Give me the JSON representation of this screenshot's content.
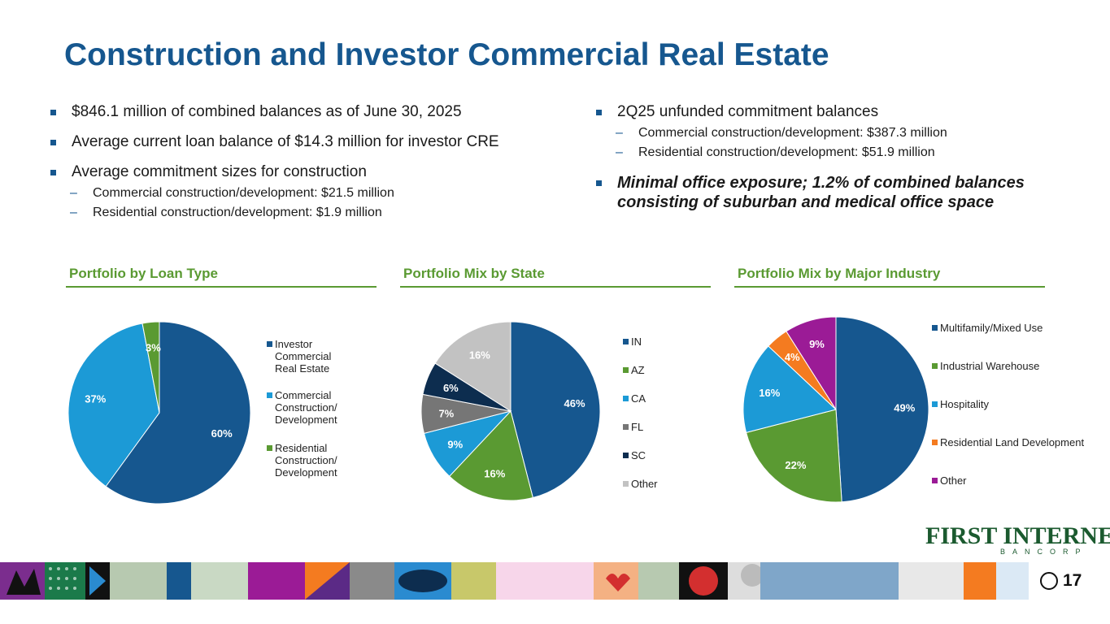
{
  "title": "Construction and Investor Commercial Real Estate",
  "left_bullets": [
    {
      "text": "$846.1 million of combined balances as of June 30, 2025",
      "subs": []
    },
    {
      "text": "Average current loan balance of $14.3 million for investor CRE",
      "subs": []
    },
    {
      "text": "Average commitment sizes for construction",
      "subs": [
        "Commercial construction/development: $21.5 million",
        "Residential construction/development: $1.9 million"
      ]
    }
  ],
  "right_bullets": [
    {
      "text": "2Q25 unfunded commitment balances",
      "subs": [
        "Commercial construction/development: $387.3 million",
        "Residential construction/development: $51.9 million"
      ]
    },
    {
      "text": "Minimal office exposure; 1.2% of combined balances consisting of suburban and medical office space",
      "subs": []
    }
  ],
  "sections": {
    "loan_type": "Portfolio by Loan Type",
    "state": "Portfolio Mix by State",
    "industry": "Portfolio Mix by Major Industry"
  },
  "logo": {
    "name": "FIRST INTERNET",
    "sub": "BANCORP"
  },
  "page_number": "17",
  "chart_data": [
    {
      "type": "pie",
      "title": "Portfolio by Loan Type",
      "legend_position": "right",
      "slices": [
        {
          "label": "Investor Commercial Real Estate",
          "legend": "Investor\nCommercial\nReal Estate",
          "value": 60,
          "display": "60%",
          "color": "#16578f",
          "label_color": "#ffffff"
        },
        {
          "label": "Commercial Construction/ Development",
          "legend": "Commercial\nConstruction/\nDevelopment",
          "value": 37,
          "display": "37%",
          "color": "#1c9ad6",
          "label_color": "#ffffff"
        },
        {
          "label": "Residential Construction/ Development",
          "legend": "Residential\nConstruction/\nDevelopment",
          "value": 3,
          "display": "3%",
          "color": "#5a9a32",
          "label_color": "#ffffff"
        }
      ]
    },
    {
      "type": "pie",
      "title": "Portfolio Mix by State",
      "legend_position": "right",
      "slices": [
        {
          "label": "IN",
          "legend": "IN",
          "value": 46,
          "display": "46%",
          "color": "#16578f",
          "label_color": "#ffffff"
        },
        {
          "label": "AZ",
          "legend": "AZ",
          "value": 16,
          "display": "16%",
          "color": "#5a9a32",
          "label_color": "#ffffff"
        },
        {
          "label": "CA",
          "legend": "CA",
          "value": 9,
          "display": "9%",
          "color": "#1c9ad6",
          "label_color": "#ffffff"
        },
        {
          "label": "FL",
          "legend": "FL",
          "value": 7,
          "display": "7%",
          "color": "#767676",
          "label_color": "#ffffff"
        },
        {
          "label": "SC",
          "legend": "SC",
          "value": 6,
          "display": "6%",
          "color": "#0d2d4f",
          "label_color": "#ffffff"
        },
        {
          "label": "Other",
          "legend": "Other",
          "value": 16,
          "display": "16%",
          "color": "#c2c2c2",
          "label_color": "#ffffff"
        }
      ]
    },
    {
      "type": "pie",
      "title": "Portfolio Mix by Major Industry",
      "legend_position": "right",
      "slices": [
        {
          "label": "Multifamily/Mixed Use",
          "legend": "Multifamily/Mixed Use",
          "value": 49,
          "display": "49%",
          "color": "#16578f",
          "label_color": "#ffffff"
        },
        {
          "label": "Industrial Warehouse",
          "legend": "Industrial Warehouse",
          "value": 22,
          "display": "22%",
          "color": "#5a9a32",
          "label_color": "#ffffff"
        },
        {
          "label": "Hospitality",
          "legend": "Hospitality",
          "value": 16,
          "display": "16%",
          "color": "#1c9ad6",
          "label_color": "#ffffff"
        },
        {
          "label": "Residential Land Development",
          "legend": "Residential Land Development",
          "value": 4,
          "display": "4%",
          "color": "#f47b20",
          "label_color": "#ffffff"
        },
        {
          "label": "Other",
          "legend": "Other",
          "value": 9,
          "display": "9%",
          "color": "#9b1b96",
          "label_color": "#ffffff"
        }
      ]
    }
  ]
}
